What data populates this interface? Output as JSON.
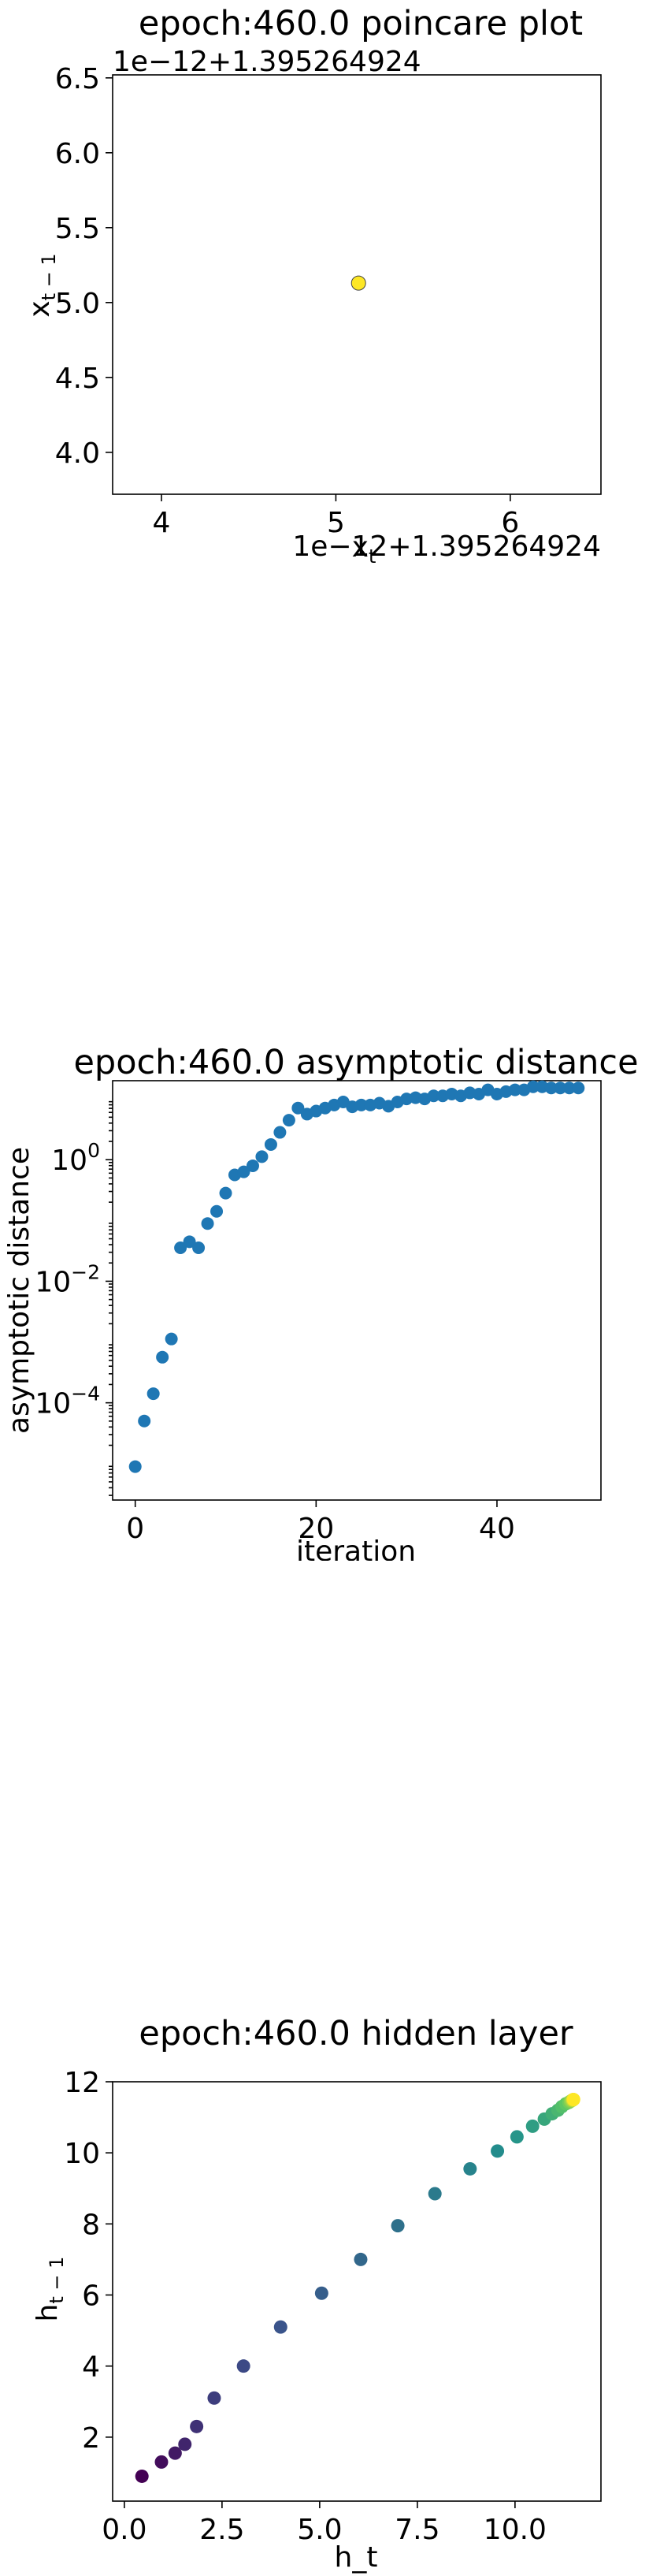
{
  "chart_data": [
    {
      "type": "scatter",
      "title": "epoch:460.0 poincare plot",
      "xlabel": "x_t",
      "ylabel": "x_{t−1}",
      "x_offset_text": "1e−12+1.395264924",
      "y_offset_text": "1e−12+1.395264924",
      "xlim": [
        3.72,
        6.52
      ],
      "ylim": [
        3.72,
        6.52
      ],
      "xticks": [
        "4",
        "5",
        "6"
      ],
      "yticks": [
        "4.0",
        "4.5",
        "5.0",
        "5.5",
        "6.0",
        "6.5"
      ],
      "xtick_values": [
        4,
        5,
        6
      ],
      "ytick_values": [
        4.0,
        4.5,
        5.0,
        5.5,
        6.0,
        6.5
      ],
      "points": [
        {
          "x": 5.13,
          "y": 5.13
        }
      ],
      "colormap": "viridis",
      "point_color": "#fde725"
    },
    {
      "type": "scatter",
      "title": "epoch:460.0 asymptotic distance",
      "xlabel": "iteration",
      "ylabel": "asymptotic distance",
      "yscale": "log",
      "xlim": [
        -2.5,
        51.5
      ],
      "ylim_log10": [
        -5.6,
        1.3
      ],
      "xticks": [
        "0",
        "20",
        "40"
      ],
      "xtick_values": [
        0,
        20,
        40
      ],
      "yticks": [
        {
          "base": "10",
          "exp": "0",
          "value": 0
        },
        {
          "base": "10",
          "exp": "−2",
          "value": -2
        },
        {
          "base": "10",
          "exp": "−4",
          "value": -4
        }
      ],
      "point_color": "#1f77b4",
      "x": [
        0,
        1,
        2,
        3,
        4,
        5,
        6,
        7,
        8,
        9,
        10,
        11,
        12,
        13,
        14,
        15,
        16,
        17,
        18,
        19,
        20,
        21,
        22,
        23,
        24,
        25,
        26,
        27,
        28,
        29,
        30,
        31,
        32,
        33,
        34,
        35,
        36,
        37,
        38,
        39,
        40,
        41,
        42,
        43,
        44,
        45,
        46,
        47,
        48,
        49
      ],
      "log10_y": [
        -5.05,
        -4.3,
        -3.85,
        -3.25,
        -2.95,
        -1.45,
        -1.35,
        -1.45,
        -1.05,
        -0.85,
        -0.55,
        -0.25,
        -0.2,
        -0.1,
        0.05,
        0.25,
        0.45,
        0.65,
        0.85,
        0.75,
        0.8,
        0.85,
        0.9,
        0.95,
        0.87,
        0.9,
        0.9,
        0.93,
        0.88,
        0.95,
        1.0,
        1.02,
        1.0,
        1.05,
        1.05,
        1.08,
        1.05,
        1.1,
        1.08,
        1.15,
        1.08,
        1.12,
        1.15,
        1.15,
        1.2,
        1.2,
        1.18,
        1.18,
        1.18,
        1.18
      ]
    },
    {
      "type": "scatter",
      "title": "epoch:460.0 hidden layer",
      "xlabel": "h_t",
      "ylabel": "h_{t−1}",
      "xlim": [
        -0.3,
        12.2
      ],
      "ylim": [
        0.2,
        12.0
      ],
      "xticks": [
        "0.0",
        "2.5",
        "5.0",
        "7.5",
        "10.0"
      ],
      "xtick_values": [
        0,
        2.5,
        5.0,
        7.5,
        10.0
      ],
      "yticks": [
        "2",
        "4",
        "6",
        "8",
        "10",
        "12"
      ],
      "ytick_values": [
        2,
        4,
        6,
        8,
        10,
        12
      ],
      "colormap": "viridis",
      "points": [
        [
          0.45,
          0.9
        ],
        [
          0.95,
          1.3
        ],
        [
          1.3,
          1.55
        ],
        [
          1.55,
          1.8
        ],
        [
          1.85,
          2.3
        ],
        [
          2.3,
          3.1
        ],
        [
          3.05,
          4.0
        ],
        [
          4.0,
          5.1
        ],
        [
          5.05,
          6.05
        ],
        [
          6.05,
          7.0
        ],
        [
          7.0,
          7.95
        ],
        [
          7.95,
          8.85
        ],
        [
          8.85,
          9.55
        ],
        [
          9.55,
          10.05
        ],
        [
          10.05,
          10.45
        ],
        [
          10.45,
          10.75
        ],
        [
          10.75,
          10.95
        ],
        [
          10.95,
          11.1
        ],
        [
          11.1,
          11.2
        ],
        [
          11.2,
          11.3
        ],
        [
          11.3,
          11.38
        ],
        [
          11.38,
          11.42
        ],
        [
          11.42,
          11.45
        ],
        [
          11.45,
          11.47
        ],
        [
          11.47,
          11.48
        ],
        [
          11.48,
          11.49
        ],
        [
          11.49,
          11.5
        ],
        [
          11.5,
          11.5
        ]
      ]
    }
  ]
}
